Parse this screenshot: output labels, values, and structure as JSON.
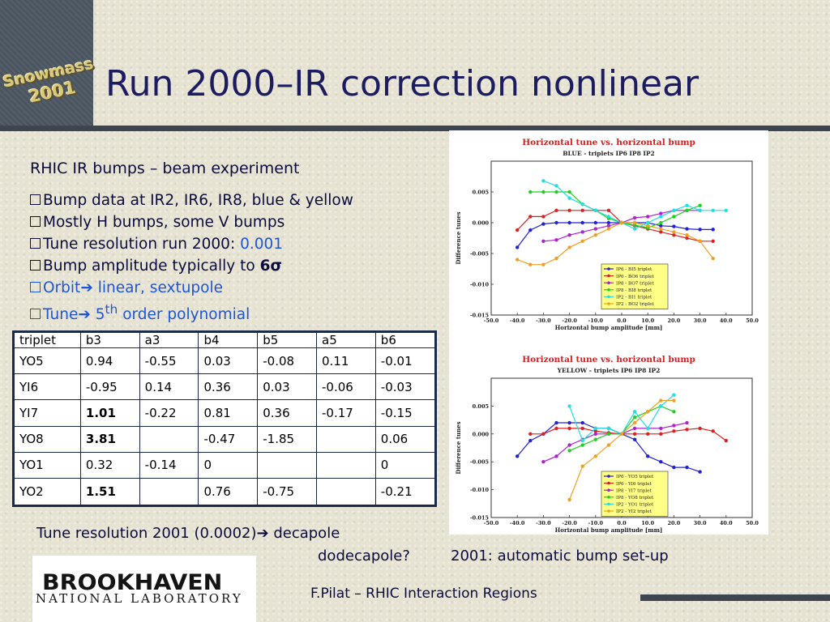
{
  "header": {
    "title": "Run 2000–IR correction nonlinear",
    "logo_line1": "Snowmass",
    "logo_line2": "2001"
  },
  "subtitle": "RHIC IR bumps – beam experiment",
  "bullets": [
    "Bump data at IR2, IR6, IR8, blue & yellow",
    "Mostly H bumps, some V bumps",
    "Tune resolution run 2000: ",
    "0.001",
    "Bump amplitude typically to ",
    "6σ",
    "Orbit",
    " linear, sextupole",
    "Tune",
    " 5",
    "th",
    " order polynomial"
  ],
  "table": {
    "headers": [
      "triplet",
      "b3",
      "a3",
      "b4",
      "b5",
      "a5",
      "b6"
    ],
    "rows": [
      [
        "YO5",
        "0.94",
        "-0.55",
        "0.03",
        "-0.08",
        "0.11",
        "-0.01"
      ],
      [
        "YI6",
        "-0.95",
        "0.14",
        "0.36",
        "0.03",
        "-0.06",
        "-0.03"
      ],
      [
        "YI7",
        "1.01",
        "-0.22",
        "0.81",
        "0.36",
        "-0.17",
        "-0.15"
      ],
      [
        "YO8",
        "3.81",
        "",
        "-0.47",
        "-1.85",
        "",
        "0.06"
      ],
      [
        "YO1",
        "0.32",
        "-0.14",
        "0",
        "",
        "",
        "0"
      ],
      [
        "YO2",
        "1.51",
        "",
        "0.76",
        "-0.75",
        "",
        "-0.21"
      ]
    ],
    "bold_b3_rows": [
      2,
      3,
      5
    ]
  },
  "bottom": {
    "tune_resolution": "Tune resolution 2001 (0.0002)",
    "decapole": " decapole",
    "dodecapole": "dodecapole?",
    "auto_bump": "2001: automatic bump set-up",
    "footer": "F.Pilat – RHIC Interaction Regions"
  },
  "logo": {
    "big": "BROOKHAVEN",
    "small": "NATIONAL LABORATORY"
  },
  "colors": {
    "title": "#1c1c60",
    "accent_blue": "#1d55d8",
    "bar": "#4a5560",
    "chart_title": "#cc2222"
  },
  "chart_data": [
    {
      "type": "line",
      "title": "Horizontal tune vs. horizontal bump",
      "subtitle": "BLUE - triplets IP6 IP8 IP2",
      "xlabel": "Horizontal bump amplitude [mm]",
      "ylabel": "Difference tunes",
      "xlim": [
        -50,
        50
      ],
      "ylim": [
        -0.015,
        0.01
      ],
      "x_ticks": [
        "-50.0",
        "-40.0",
        "-30.0",
        "-20.0",
        "-10.0",
        "0.0",
        "10.0",
        "20.0",
        "30.0",
        "40.0",
        "50.0"
      ],
      "y_ticks": [
        "-0.015",
        "-0.010",
        "-0.005",
        "0.000",
        "0.005"
      ],
      "legend_position": "bottom-right",
      "series": [
        {
          "name": "IP6 - BI5 triplet",
          "color": "#2020d8",
          "x": [
            -40,
            -35,
            -30,
            -25,
            -20,
            -15,
            -10,
            -5,
            0,
            5,
            10,
            15,
            20,
            25,
            30,
            35
          ],
          "y": [
            -0.004,
            -0.0012,
            -0.0002,
            0,
            0,
            0,
            0,
            0,
            0,
            0,
            0,
            -0.0005,
            -0.0006,
            -0.001,
            -0.0011,
            -0.0011
          ]
        },
        {
          "name": "IP6 - BO6 triplet",
          "color": "#e02020",
          "x": [
            -40,
            -35,
            -30,
            -25,
            -20,
            -15,
            -10,
            -5,
            0,
            5,
            10,
            15,
            20,
            25,
            30,
            35
          ],
          "y": [
            -0.0012,
            0.001,
            0.001,
            0.002,
            0.002,
            0.002,
            0.002,
            0.002,
            0,
            -0.0005,
            -0.001,
            -0.0015,
            -0.002,
            -0.0025,
            -0.003,
            -0.003
          ]
        },
        {
          "name": "IP8 - BO7 triplet",
          "color": "#b020d0",
          "x": [
            -30,
            -25,
            -20,
            -15,
            -10,
            -5,
            0,
            5,
            10,
            15,
            20,
            25,
            30
          ],
          "y": [
            -0.003,
            -0.0028,
            -0.002,
            -0.0015,
            -0.001,
            -0.0005,
            0,
            0.0008,
            0.001,
            0.0015,
            0.002,
            0.002,
            0.002
          ]
        },
        {
          "name": "IP8 - BI8 triplet",
          "color": "#20d020",
          "x": [
            -35,
            -30,
            -25,
            -20,
            -15,
            -10,
            -5,
            0,
            5,
            10,
            15,
            20,
            25,
            30
          ],
          "y": [
            0.005,
            0.005,
            0.005,
            0.005,
            0.003,
            0.002,
            0.0007,
            0,
            -0.0004,
            -0.0008,
            0,
            0.001,
            0.002,
            0.0028
          ]
        },
        {
          "name": "IP2 - BI1 triplet",
          "color": "#20e0e0",
          "x": [
            -30,
            -25,
            -20,
            -15,
            -10,
            -5,
            0,
            5,
            10,
            15,
            20,
            25,
            30,
            35,
            40
          ],
          "y": [
            0.0068,
            0.006,
            0.004,
            0.003,
            0.002,
            0.001,
            0,
            -0.001,
            0,
            0.001,
            0.002,
            0.0028,
            0.002,
            0.002,
            0.002
          ]
        },
        {
          "name": "IP2 - BO2 triplet",
          "color": "#f0a020",
          "x": [
            -40,
            -35,
            -30,
            -25,
            -20,
            -15,
            -10,
            -5,
            0,
            5,
            10,
            15,
            20,
            25,
            30,
            35
          ],
          "y": [
            -0.006,
            -0.0068,
            -0.0068,
            -0.0058,
            -0.004,
            -0.003,
            -0.002,
            -0.001,
            0,
            0,
            -0.0005,
            -0.001,
            -0.0015,
            -0.002,
            -0.003,
            -0.0058
          ]
        }
      ]
    },
    {
      "type": "line",
      "title": "Horizontal tune vs. horizontal bump",
      "subtitle": "YELLOW - triplets IP6 IP8 IP2",
      "xlabel": "Horizontal bump amplitude [mm]",
      "ylabel": "Difference tunes",
      "xlim": [
        -50,
        50
      ],
      "ylim": [
        -0.015,
        0.01
      ],
      "x_ticks": [
        "-50.0",
        "-40.0",
        "-30.0",
        "-20.0",
        "-10.0",
        "0.0",
        "10.0",
        "20.0",
        "30.0",
        "40.0",
        "50.0"
      ],
      "y_ticks": [
        "-0.015",
        "-0.010",
        "-0.005",
        "0.000",
        "0.005"
      ],
      "legend_position": "bottom-right",
      "series": [
        {
          "name": "IP6 - YO5 triplet",
          "color": "#2020d8",
          "x": [
            -40,
            -35,
            -30,
            -25,
            -20,
            -15,
            -10,
            -5,
            0,
            5,
            10,
            15,
            20,
            25,
            30
          ],
          "y": [
            -0.004,
            -0.0012,
            0,
            0.002,
            0.002,
            0.002,
            0.001,
            0.001,
            0,
            -0.001,
            -0.004,
            -0.005,
            -0.006,
            -0.006,
            -0.0068
          ]
        },
        {
          "name": "IP6 - YI6 triplet",
          "color": "#e02020",
          "x": [
            -35,
            -30,
            -25,
            -20,
            -15,
            -10,
            -5,
            0,
            5,
            10,
            15,
            20,
            25,
            30,
            35,
            40
          ],
          "y": [
            0,
            0,
            0.001,
            0.001,
            0.001,
            0.0005,
            0.0002,
            0,
            0,
            0,
            0,
            0.0005,
            0.0008,
            0.001,
            0.0005,
            -0.0012
          ]
        },
        {
          "name": "IP8 - YI7 triplet",
          "color": "#b020d0",
          "x": [
            -30,
            -25,
            -20,
            -15,
            -10,
            -5,
            0,
            5,
            10,
            15,
            20,
            25
          ],
          "y": [
            -0.005,
            -0.004,
            -0.002,
            -0.001,
            0,
            0,
            0,
            0.001,
            0.001,
            0.001,
            0.0015,
            0.002
          ]
        },
        {
          "name": "IP8 - YO8 triplet",
          "color": "#20d020",
          "x": [
            -20,
            -15,
            -10,
            -5,
            0,
            5,
            10,
            15,
            20
          ],
          "y": [
            -0.003,
            -0.002,
            -0.001,
            0,
            0,
            0.003,
            0.004,
            0.005,
            0.004
          ]
        },
        {
          "name": "IP2 - YO1 triplet",
          "color": "#20e0e0",
          "x": [
            -20,
            -15,
            -10,
            -5,
            0,
            5,
            10,
            15,
            20
          ],
          "y": [
            0.005,
            -0.0012,
            0.001,
            0.001,
            0,
            0.004,
            0.001,
            0.005,
            0.007
          ]
        },
        {
          "name": "IP2 - YI2 triplet",
          "color": "#f0a020",
          "x": [
            -20,
            -15,
            -10,
            -5,
            0,
            5,
            10,
            15,
            20
          ],
          "y": [
            -0.0118,
            -0.0058,
            -0.004,
            -0.002,
            0,
            0.002,
            0.004,
            0.006,
            0.006
          ]
        }
      ]
    }
  ]
}
